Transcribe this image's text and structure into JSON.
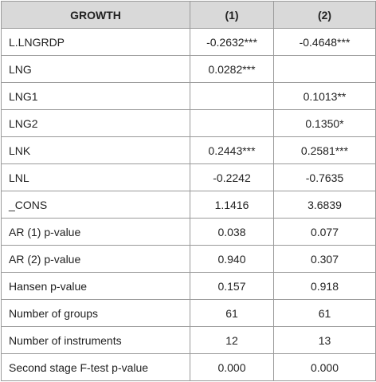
{
  "table": {
    "header": [
      "GROWTH",
      "(1)",
      "(2)"
    ],
    "rows": [
      [
        "L.LNGRDP",
        "-0.2632***",
        "-0.4648***"
      ],
      [
        "LNG",
        "0.0282***",
        null
      ],
      [
        "LNG1",
        null,
        "0.1013**"
      ],
      [
        "LNG2",
        null,
        "0.1350*"
      ],
      [
        "LNK",
        "0.2443***",
        "0.2581***"
      ],
      [
        "LNL",
        "-0.2242",
        "-0.7635"
      ],
      [
        "_CONS",
        "1.1416",
        "3.6839"
      ],
      [
        "AR (1) p-value",
        "0.038",
        "0.077"
      ],
      [
        "AR (2) p-value",
        "0.940",
        "0.307"
      ],
      [
        "Hansen p-value",
        "0.157",
        "0.918"
      ],
      [
        "Number of groups",
        "61",
        "61"
      ],
      [
        "Number of instruments",
        "12",
        "13"
      ],
      [
        "Second stage F-test p-value",
        "0.000",
        "0.000"
      ]
    ]
  }
}
